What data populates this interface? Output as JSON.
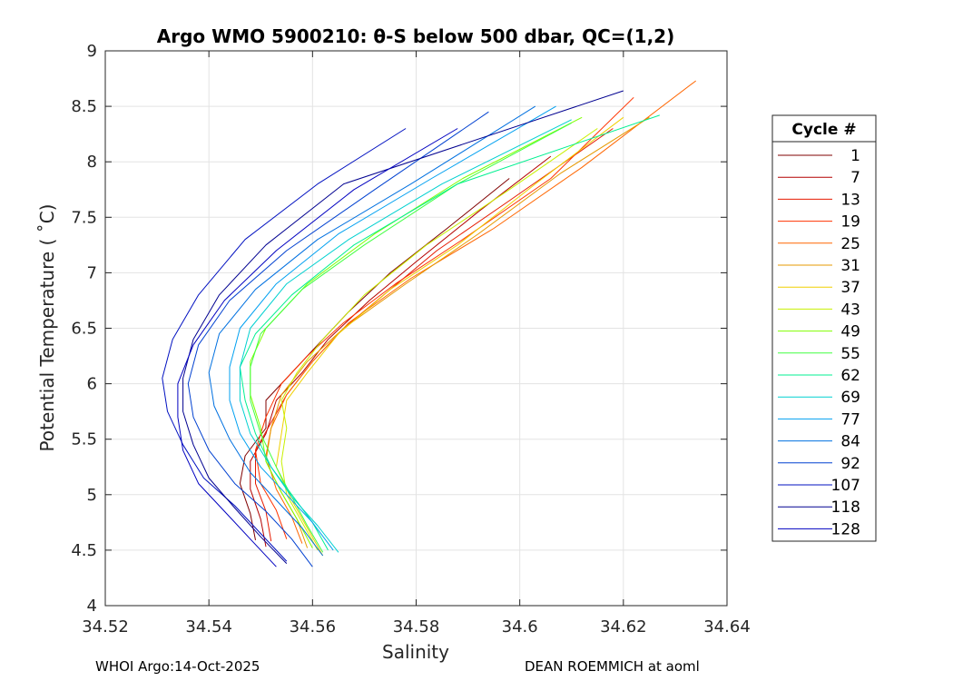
{
  "chart_data": {
    "type": "line",
    "title": "Argo WMO 5900210: θ-S below 500 dbar,  QC=(1,2)",
    "xlabel": "Salinity",
    "ylabel": "Potential Temperature ( ˚C)",
    "xlim": [
      34.52,
      34.64
    ],
    "ylim": [
      4,
      9
    ],
    "xticks": [
      34.52,
      34.54,
      34.56,
      34.58,
      34.6,
      34.62,
      34.64
    ],
    "xtick_labels": [
      "34.52",
      "34.54",
      "34.56",
      "34.58",
      "34.6",
      "34.62",
      "34.64"
    ],
    "yticks": [
      4,
      4.5,
      5,
      5.5,
      6,
      6.5,
      7,
      7.5,
      8,
      8.5,
      9
    ],
    "ytick_labels": [
      "4",
      "4.5",
      "5",
      "5.5",
      "6",
      "6.5",
      "7",
      "7.5",
      "8",
      "8.5",
      "9"
    ],
    "grid": true,
    "legend": {
      "title": "Cycle #",
      "placement": "right-outside",
      "entries": [
        "1",
        "7",
        "13",
        "19",
        "25",
        "31",
        "37",
        "43",
        "49",
        "55",
        "62",
        "69",
        "77",
        "84",
        "92",
        "107",
        "118",
        "128"
      ],
      "colors": [
        "#800000",
        "#b30000",
        "#e61a00",
        "#ff3300",
        "#ff6600",
        "#e69900",
        "#f0d000",
        "#c8f000",
        "#80ff00",
        "#40ff40",
        "#00f090",
        "#00d0d0",
        "#00a0f0",
        "#0070e0",
        "#0040d0",
        "#0010c0",
        "#000090",
        "#0000c0"
      ]
    },
    "series": [
      {
        "name": "1",
        "color": "#800000",
        "points": [
          [
            34.549,
            4.59
          ],
          [
            34.548,
            4.83
          ],
          [
            34.546,
            5.1
          ],
          [
            34.547,
            5.35
          ],
          [
            34.551,
            5.6
          ],
          [
            34.551,
            5.85
          ],
          [
            34.556,
            6.1
          ],
          [
            34.561,
            6.35
          ],
          [
            34.567,
            6.65
          ],
          [
            34.575,
            7.0
          ],
          [
            34.586,
            7.4
          ],
          [
            34.598,
            7.85
          ]
        ]
      },
      {
        "name": "7",
        "color": "#b30000",
        "points": [
          [
            34.551,
            4.53
          ],
          [
            34.55,
            4.78
          ],
          [
            34.548,
            5.05
          ],
          [
            34.548,
            5.3
          ],
          [
            34.551,
            5.55
          ],
          [
            34.553,
            5.85
          ],
          [
            34.558,
            6.1
          ],
          [
            34.563,
            6.4
          ],
          [
            34.571,
            6.75
          ],
          [
            34.58,
            7.1
          ],
          [
            34.592,
            7.55
          ],
          [
            34.606,
            8.05
          ]
        ]
      },
      {
        "name": "13",
        "color": "#e61a00",
        "points": [
          [
            34.552,
            4.58
          ],
          [
            34.551,
            4.85
          ],
          [
            34.549,
            5.1
          ],
          [
            34.549,
            5.4
          ],
          [
            34.552,
            5.65
          ],
          [
            34.555,
            5.9
          ],
          [
            34.56,
            6.2
          ],
          [
            34.566,
            6.5
          ],
          [
            34.575,
            6.85
          ],
          [
            34.584,
            7.2
          ],
          [
            34.598,
            7.65
          ],
          [
            34.618,
            8.3
          ]
        ]
      },
      {
        "name": "19",
        "color": "#ff3300",
        "points": [
          [
            34.555,
            4.6
          ],
          [
            34.553,
            4.86
          ],
          [
            34.55,
            5.1
          ],
          [
            34.549,
            5.4
          ],
          [
            34.551,
            5.7
          ],
          [
            34.554,
            6.0
          ],
          [
            34.559,
            6.25
          ],
          [
            34.566,
            6.55
          ],
          [
            34.576,
            6.9
          ],
          [
            34.589,
            7.3
          ],
          [
            34.606,
            7.85
          ],
          [
            34.622,
            8.58
          ]
        ]
      },
      {
        "name": "25",
        "color": "#ff6600",
        "points": [
          [
            34.558,
            4.56
          ],
          [
            34.556,
            4.8
          ],
          [
            34.553,
            5.05
          ],
          [
            34.551,
            5.35
          ],
          [
            34.552,
            5.6
          ],
          [
            34.555,
            5.9
          ],
          [
            34.56,
            6.2
          ],
          [
            34.567,
            6.55
          ],
          [
            34.579,
            6.95
          ],
          [
            34.595,
            7.4
          ],
          [
            34.612,
            7.95
          ],
          [
            34.634,
            8.73
          ]
        ]
      },
      {
        "name": "31",
        "color": "#e69900",
        "points": [
          [
            34.559,
            4.52
          ],
          [
            34.557,
            4.78
          ],
          [
            34.554,
            5.02
          ],
          [
            34.551,
            5.3
          ],
          [
            34.552,
            5.6
          ],
          [
            34.554,
            5.9
          ],
          [
            34.559,
            6.2
          ],
          [
            34.566,
            6.5
          ],
          [
            34.578,
            6.9
          ],
          [
            34.592,
            7.35
          ],
          [
            34.608,
            7.9
          ],
          [
            34.625,
            8.4
          ]
        ]
      },
      {
        "name": "37",
        "color": "#f0d000",
        "points": [
          [
            34.562,
            4.45
          ],
          [
            34.559,
            4.7
          ],
          [
            34.556,
            4.95
          ],
          [
            34.553,
            5.25
          ],
          [
            34.554,
            5.55
          ],
          [
            34.555,
            5.85
          ],
          [
            34.559,
            6.1
          ],
          [
            34.565,
            6.45
          ],
          [
            34.575,
            6.85
          ],
          [
            34.588,
            7.25
          ],
          [
            34.603,
            7.8
          ],
          [
            34.62,
            8.4
          ]
        ]
      },
      {
        "name": "43",
        "color": "#c8f000",
        "points": [
          [
            34.561,
            4.5
          ],
          [
            34.558,
            4.75
          ],
          [
            34.555,
            5.0
          ],
          [
            34.554,
            5.3
          ],
          [
            34.555,
            5.6
          ],
          [
            34.554,
            5.85
          ],
          [
            34.557,
            6.1
          ],
          [
            34.562,
            6.4
          ],
          [
            34.57,
            6.8
          ],
          [
            34.582,
            7.25
          ],
          [
            34.598,
            7.75
          ],
          [
            34.615,
            8.3
          ]
        ]
      },
      {
        "name": "49",
        "color": "#80ff00",
        "points": [
          [
            34.56,
            4.52
          ],
          [
            34.557,
            4.78
          ],
          [
            34.554,
            5.02
          ],
          [
            34.551,
            5.3
          ],
          [
            34.55,
            5.6
          ],
          [
            34.548,
            5.9
          ],
          [
            34.548,
            6.2
          ],
          [
            34.551,
            6.5
          ],
          [
            34.559,
            6.9
          ],
          [
            34.572,
            7.35
          ],
          [
            34.589,
            7.85
          ],
          [
            34.612,
            8.4
          ]
        ]
      },
      {
        "name": "55",
        "color": "#40ff40",
        "points": [
          [
            34.562,
            4.48
          ],
          [
            34.559,
            4.72
          ],
          [
            34.556,
            4.98
          ],
          [
            34.553,
            5.25
          ],
          [
            34.55,
            5.55
          ],
          [
            34.548,
            5.85
          ],
          [
            34.548,
            6.15
          ],
          [
            34.55,
            6.45
          ],
          [
            34.558,
            6.85
          ],
          [
            34.57,
            7.25
          ],
          [
            34.588,
            7.8
          ],
          [
            34.61,
            8.35
          ]
        ]
      },
      {
        "name": "62",
        "color": "#00f090",
        "points": [
          [
            34.563,
            4.5
          ],
          [
            34.56,
            4.75
          ],
          [
            34.556,
            5.0
          ],
          [
            34.552,
            5.25
          ],
          [
            34.549,
            5.55
          ],
          [
            34.547,
            5.85
          ],
          [
            34.546,
            6.15
          ],
          [
            34.549,
            6.45
          ],
          [
            34.556,
            6.8
          ],
          [
            34.568,
            7.25
          ],
          [
            34.588,
            7.8
          ],
          [
            34.627,
            8.42
          ]
        ]
      },
      {
        "name": "69",
        "color": "#00d0d0",
        "points": [
          [
            34.565,
            4.48
          ],
          [
            34.561,
            4.72
          ],
          [
            34.556,
            4.98
          ],
          [
            34.552,
            5.25
          ],
          [
            34.548,
            5.55
          ],
          [
            34.546,
            5.85
          ],
          [
            34.546,
            6.15
          ],
          [
            34.548,
            6.5
          ],
          [
            34.555,
            6.9
          ],
          [
            34.567,
            7.3
          ],
          [
            34.585,
            7.8
          ],
          [
            34.61,
            8.38
          ]
        ]
      },
      {
        "name": "77",
        "color": "#00a0f0",
        "points": [
          [
            34.564,
            4.5
          ],
          [
            34.56,
            4.75
          ],
          [
            34.555,
            5.0
          ],
          [
            34.55,
            5.25
          ],
          [
            34.546,
            5.55
          ],
          [
            34.544,
            5.85
          ],
          [
            34.544,
            6.15
          ],
          [
            34.546,
            6.5
          ],
          [
            34.553,
            6.9
          ],
          [
            34.565,
            7.35
          ],
          [
            34.583,
            7.85
          ],
          [
            34.607,
            8.5
          ]
        ]
      },
      {
        "name": "84",
        "color": "#0070e0",
        "points": [
          [
            34.562,
            4.45
          ],
          [
            34.558,
            4.7
          ],
          [
            34.553,
            4.95
          ],
          [
            34.548,
            5.2
          ],
          [
            34.544,
            5.5
          ],
          [
            34.541,
            5.8
          ],
          [
            34.54,
            6.1
          ],
          [
            34.542,
            6.45
          ],
          [
            34.549,
            6.85
          ],
          [
            34.561,
            7.3
          ],
          [
            34.579,
            7.8
          ],
          [
            34.603,
            8.5
          ]
        ]
      },
      {
        "name": "92",
        "color": "#0040d0",
        "points": [
          [
            34.56,
            4.35
          ],
          [
            34.556,
            4.6
          ],
          [
            34.551,
            4.85
          ],
          [
            34.545,
            5.1
          ],
          [
            34.54,
            5.4
          ],
          [
            34.537,
            5.7
          ],
          [
            34.536,
            6.0
          ],
          [
            34.538,
            6.35
          ],
          [
            34.544,
            6.75
          ],
          [
            34.555,
            7.2
          ],
          [
            34.572,
            7.75
          ],
          [
            34.594,
            8.45
          ]
        ]
      },
      {
        "name": "107",
        "color": "#0010c0",
        "points": [
          [
            34.555,
            4.4
          ],
          [
            34.55,
            4.65
          ],
          [
            34.545,
            4.9
          ],
          [
            34.539,
            5.15
          ],
          [
            34.535,
            5.45
          ],
          [
            34.532,
            5.75
          ],
          [
            34.531,
            6.05
          ],
          [
            34.533,
            6.4
          ],
          [
            34.538,
            6.8
          ],
          [
            34.547,
            7.3
          ],
          [
            34.561,
            7.8
          ],
          [
            34.578,
            8.3
          ]
        ]
      },
      {
        "name": "118",
        "color": "#000090",
        "points": [
          [
            34.555,
            4.38
          ],
          [
            34.55,
            4.62
          ],
          [
            34.545,
            4.88
          ],
          [
            34.54,
            5.15
          ],
          [
            34.537,
            5.45
          ],
          [
            34.535,
            5.75
          ],
          [
            34.535,
            6.05
          ],
          [
            34.537,
            6.4
          ],
          [
            34.542,
            6.8
          ],
          [
            34.551,
            7.25
          ],
          [
            34.566,
            7.8
          ],
          [
            34.62,
            8.64
          ]
        ]
      },
      {
        "name": "128",
        "color": "#0000c0",
        "points": [
          [
            34.553,
            4.35
          ],
          [
            34.548,
            4.6
          ],
          [
            34.543,
            4.85
          ],
          [
            34.538,
            5.1
          ],
          [
            34.535,
            5.4
          ],
          [
            34.534,
            5.7
          ],
          [
            34.534,
            6.0
          ],
          [
            34.537,
            6.35
          ],
          [
            34.543,
            6.75
          ],
          [
            34.553,
            7.2
          ],
          [
            34.568,
            7.75
          ],
          [
            34.588,
            8.3
          ]
        ]
      }
    ]
  },
  "footer": {
    "left": "WHOI Argo:14-Oct-2025",
    "right": "DEAN ROEMMICH at aoml"
  }
}
